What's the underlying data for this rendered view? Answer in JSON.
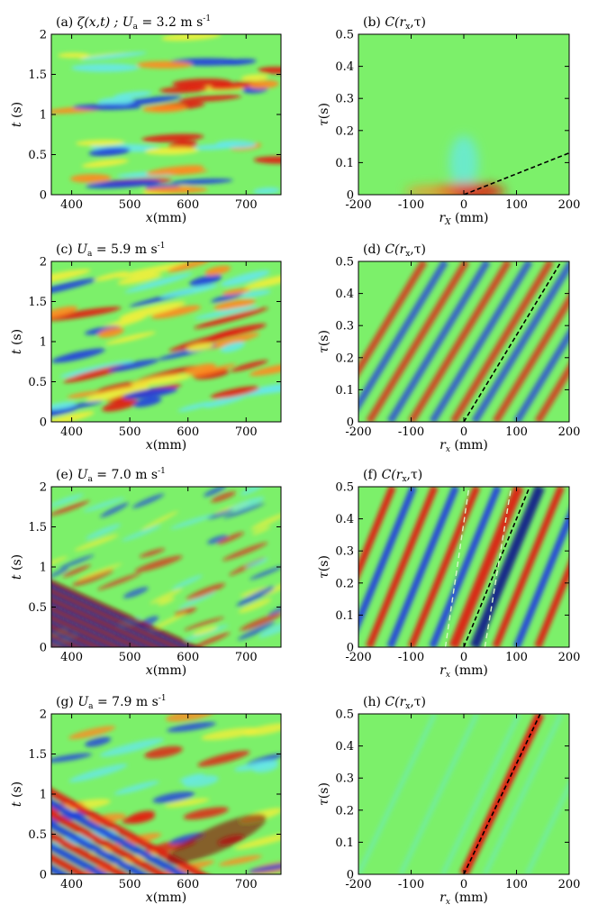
{
  "figure": {
    "colors": {
      "background": "#7cf06a",
      "cyan": "#66e8e8",
      "yellow": "#f2ef3a",
      "orange": "#ff8a1e",
      "red": "#e31a12",
      "darkred": "#8a0a0a",
      "blue": "#1f3fe0",
      "darkblue": "#101a8c",
      "dashed": "#000000",
      "dashed_light": "#d8f7c8"
    }
  },
  "chart_data": [
    {
      "id": "a",
      "type": "heatmap",
      "title_prefix": "(a)",
      "title_main": "ζ(x,t) ; U",
      "title_sub": "a",
      "title_suffix": " = 3.2 m s",
      "title_sup": "-1",
      "xlabel_main": "x",
      "xlabel_rest": "(mm)",
      "ylabel_main": "t",
      "ylabel_rest": " (s)",
      "xlim": [
        365,
        760
      ],
      "ylim": [
        0,
        2
      ],
      "xticks": [
        "400",
        "500",
        "600",
        "700"
      ],
      "xtick_values": [
        400,
        500,
        600,
        700
      ],
      "yticks": [
        "0",
        "0.5",
        "1",
        "1.5",
        "2"
      ],
      "ytick_values": [
        0,
        0.5,
        1,
        1.5,
        2
      ],
      "pattern": "streaks-low"
    },
    {
      "id": "b",
      "type": "heatmap",
      "title_prefix": "(b)",
      "title_main": "C(r",
      "title_sub": "x",
      "title_suffix": ",τ)",
      "xlabel_main": "r",
      "xlabel_sub": "X",
      "xlabel_rest": "  (mm)",
      "ylabel_main": "τ",
      "ylabel_rest": "(s)",
      "xlim": [
        -200,
        200
      ],
      "ylim": [
        0,
        0.5
      ],
      "xticks": [
        "-200",
        "-100",
        "0",
        "100",
        "200"
      ],
      "xtick_values": [
        -200,
        -100,
        0,
        100,
        200
      ],
      "yticks": [
        "0",
        "0.1",
        "0.2",
        "0.3",
        "0.4",
        "0.5"
      ],
      "ytick_values": [
        0,
        0.1,
        0.2,
        0.3,
        0.4,
        0.5
      ],
      "pattern": "corr-weak",
      "dashed_lines": [
        {
          "x": [
            0,
            200
          ],
          "y": [
            0,
            0.13
          ]
        }
      ]
    },
    {
      "id": "c",
      "type": "heatmap",
      "title_prefix": "(c)",
      "title_main": "U",
      "title_sub": "a",
      "title_suffix": " = 5.9 m s",
      "title_sup": "-1",
      "xlabel_main": "x",
      "xlabel_rest": "(mm)",
      "ylabel_main": "t",
      "ylabel_rest": " (s)",
      "xlim": [
        365,
        760
      ],
      "ylim": [
        0,
        2
      ],
      "xticks": [
        "400",
        "500",
        "600",
        "700"
      ],
      "xtick_values": [
        400,
        500,
        600,
        700
      ],
      "yticks": [
        "0",
        "0.5",
        "1",
        "1.5",
        "2"
      ],
      "ytick_values": [
        0,
        0.5,
        1,
        1.5,
        2
      ],
      "pattern": "streaks-mid"
    },
    {
      "id": "d",
      "type": "heatmap",
      "title_prefix": "(d)",
      "title_main": "C(r",
      "title_sub": "x",
      "title_suffix": ",τ)",
      "xlabel_main": "r",
      "xlabel_sub": "x",
      "xlabel_rest": "  (mm)",
      "ylabel_main": "τ",
      "ylabel_rest": "(s)",
      "xlim": [
        -200,
        200
      ],
      "ylim": [
        0,
        0.5
      ],
      "xticks": [
        "-200",
        "-100",
        "0",
        "100",
        "200"
      ],
      "xtick_values": [
        -200,
        -100,
        0,
        100,
        200
      ],
      "yticks": [
        "0",
        "0.1",
        "0.2",
        "0.3",
        "0.4",
        "0.5"
      ],
      "ytick_values": [
        0,
        0.1,
        0.2,
        0.3,
        0.4,
        0.5
      ],
      "pattern": "corr-mid",
      "dashed_lines": [
        {
          "x": [
            0,
            185
          ],
          "y": [
            0,
            0.5
          ]
        }
      ]
    },
    {
      "id": "e",
      "type": "heatmap",
      "title_prefix": "(e)",
      "title_main": "U",
      "title_sub": "a",
      "title_suffix": " = 7.0 m s",
      "title_sup": "-1",
      "xlabel_main": "x",
      "xlabel_rest": "(mm)",
      "ylabel_main": "t",
      "ylabel_rest": " (s)",
      "xlim": [
        365,
        760
      ],
      "ylim": [
        0,
        2
      ],
      "xticks": [
        "400",
        "500",
        "600",
        "700"
      ],
      "xtick_values": [
        400,
        500,
        600,
        700
      ],
      "yticks": [
        "0",
        "0.5",
        "1",
        "1.5",
        "2"
      ],
      "ytick_values": [
        0,
        0.5,
        1,
        1.5,
        2
      ],
      "pattern": "waves-mid"
    },
    {
      "id": "f",
      "type": "heatmap",
      "title_prefix": "(f)",
      "title_main": "C(r",
      "title_sub": "x",
      "title_suffix": ",τ)",
      "xlabel_main": "r",
      "xlabel_sub": "x",
      "xlabel_rest": "  (mm)",
      "ylabel_main": "τ",
      "ylabel_rest": "(s)",
      "xlim": [
        -200,
        200
      ],
      "ylim": [
        0,
        0.5
      ],
      "xticks": [
        "-200",
        "-100",
        "0",
        "100",
        "200"
      ],
      "xtick_values": [
        -200,
        -100,
        0,
        100,
        200
      ],
      "yticks": [
        "0",
        "0.1",
        "0.2",
        "0.3",
        "0.4",
        "0.5"
      ],
      "ytick_values": [
        0,
        0.1,
        0.2,
        0.3,
        0.4,
        0.5
      ],
      "pattern": "corr-strong",
      "dashed_lines": [
        {
          "x": [
            0,
            125
          ],
          "y": [
            0,
            0.5
          ]
        }
      ],
      "light_dashed_lines": [
        {
          "x": [
            -35,
            10
          ],
          "y": [
            0,
            0.5
          ]
        },
        {
          "x": [
            40,
            90
          ],
          "y": [
            0,
            0.5
          ]
        }
      ]
    },
    {
      "id": "g",
      "type": "heatmap",
      "title_prefix": "(g)",
      "title_main": "U",
      "title_sub": "a",
      "title_suffix": " = 7.9 m s",
      "title_sup": "-1",
      "xlabel_main": "x",
      "xlabel_rest": "(mm)",
      "ylabel_main": "t",
      "ylabel_rest": " (s)",
      "xlim": [
        365,
        760
      ],
      "ylim": [
        0,
        2
      ],
      "xticks": [
        "400",
        "500",
        "600",
        "700"
      ],
      "xtick_values": [
        400,
        500,
        600,
        700
      ],
      "yticks": [
        "0",
        "0.5",
        "1",
        "1.5",
        "2"
      ],
      "ytick_values": [
        0,
        0.5,
        1,
        1.5,
        2
      ],
      "pattern": "waves-high"
    },
    {
      "id": "h",
      "type": "heatmap",
      "title_prefix": "(h)",
      "title_main": "C(r",
      "title_sub": "x",
      "title_suffix": ",τ)",
      "xlabel_main": "r",
      "xlabel_sub": "x",
      "xlabel_rest": "  (mm)",
      "ylabel_main": "τ",
      "ylabel_rest": "(s)",
      "xlim": [
        -200,
        200
      ],
      "ylim": [
        0,
        0.5
      ],
      "xticks": [
        "-200",
        "-100",
        "0",
        "100",
        "200"
      ],
      "xtick_values": [
        -200,
        -100,
        0,
        100,
        200
      ],
      "yticks": [
        "0",
        "0.1",
        "0.2",
        "0.3",
        "0.4",
        "0.5"
      ],
      "ytick_values": [
        0,
        0.1,
        0.2,
        0.3,
        0.4,
        0.5
      ],
      "pattern": "corr-single",
      "dashed_lines": [
        {
          "x": [
            0,
            145
          ],
          "y": [
            0,
            0.5
          ]
        }
      ]
    }
  ]
}
